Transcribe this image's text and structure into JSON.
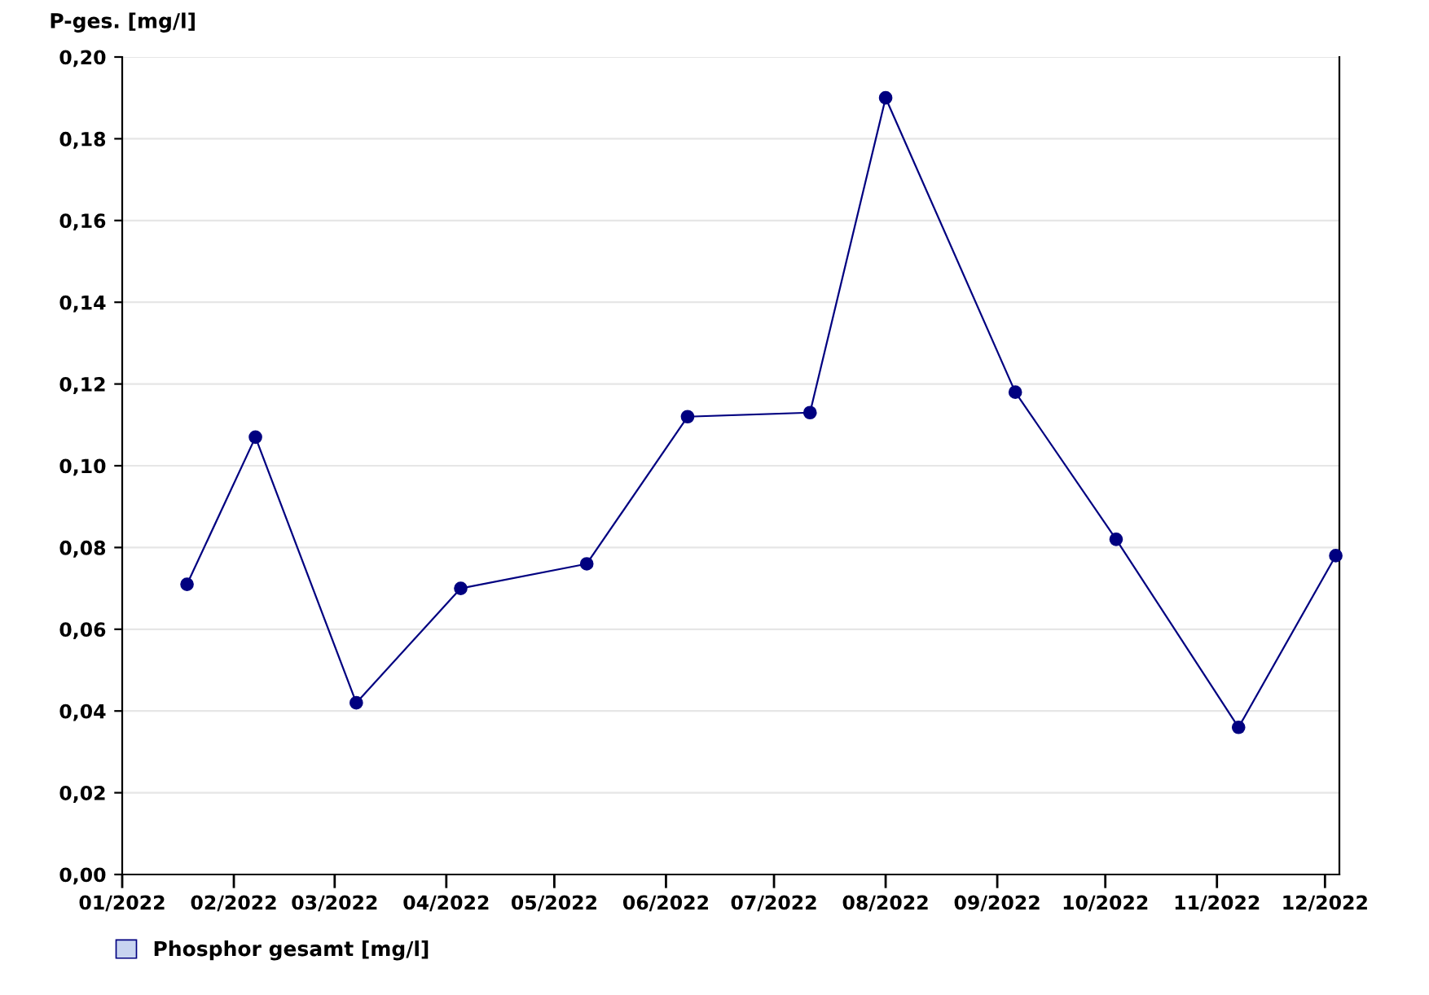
{
  "chart_data": {
    "type": "line",
    "ylabel": "P-ges. [mg/l]",
    "x": [
      "2022-01-19",
      "2022-02-07",
      "2022-03-07",
      "2022-04-05",
      "2022-05-10",
      "2022-06-07",
      "2022-07-11",
      "2022-08-01",
      "2022-09-06",
      "2022-10-04",
      "2022-11-07",
      "2022-12-04"
    ],
    "series": [
      {
        "name": "Phosphor gesamt [mg/l]",
        "color": "#000080",
        "values": [
          0.071,
          0.107,
          0.042,
          0.07,
          0.076,
          0.112,
          0.113,
          0.19,
          0.118,
          0.082,
          0.036,
          0.078
        ]
      }
    ],
    "xlim": [
      "2022-01-01",
      "2022-12-05"
    ],
    "xticks": [
      {
        "value": "2022-01-01",
        "label": "01/2022"
      },
      {
        "value": "2022-02-01",
        "label": "02/2022"
      },
      {
        "value": "2022-03-01",
        "label": "03/2022"
      },
      {
        "value": "2022-04-01",
        "label": "04/2022"
      },
      {
        "value": "2022-05-01",
        "label": "05/2022"
      },
      {
        "value": "2022-06-01",
        "label": "06/2022"
      },
      {
        "value": "2022-07-01",
        "label": "07/2022"
      },
      {
        "value": "2022-08-01",
        "label": "08/2022"
      },
      {
        "value": "2022-09-01",
        "label": "09/2022"
      },
      {
        "value": "2022-10-01",
        "label": "10/2022"
      },
      {
        "value": "2022-11-01",
        "label": "11/2022"
      },
      {
        "value": "2022-12-01",
        "label": "12/2022"
      }
    ],
    "ylim": [
      0,
      0.2
    ],
    "yticks": [
      {
        "value": 0,
        "label": "0,00"
      },
      {
        "value": 0.02,
        "label": "0,02"
      },
      {
        "value": 0.04,
        "label": "0,04"
      },
      {
        "value": 0.06,
        "label": "0,06"
      },
      {
        "value": 0.08,
        "label": "0,08"
      },
      {
        "value": 0.1,
        "label": "0,10"
      },
      {
        "value": 0.12,
        "label": "0,12"
      },
      {
        "value": 0.14,
        "label": "0,14"
      },
      {
        "value": 0.16,
        "label": "0,16"
      },
      {
        "value": 0.18,
        "label": "0,18"
      },
      {
        "value": 0.2,
        "label": "0,20"
      }
    ],
    "grid": "y",
    "legend": "bottom left",
    "marker": "circle",
    "line_style": "solid"
  }
}
